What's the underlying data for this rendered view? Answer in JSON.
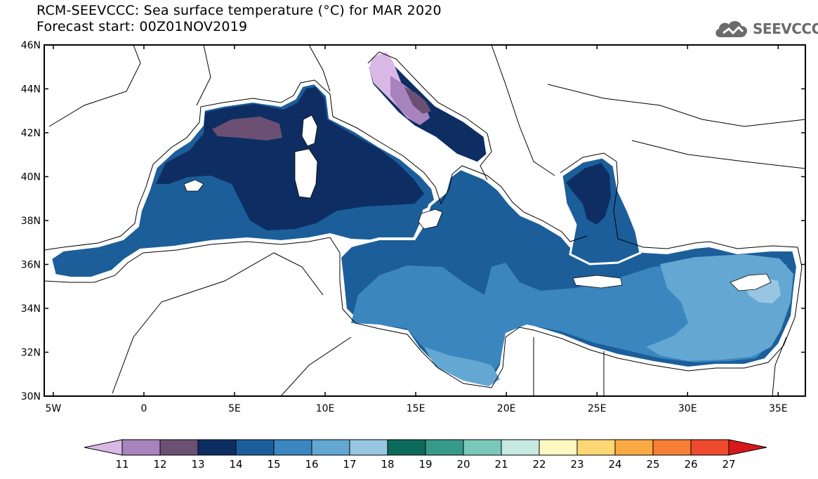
{
  "title": {
    "line1": "RCM-SEEVCCC: Sea surface temperature (°C) for MAR 2020",
    "line2": "Forecast start: 00Z01NOV2019"
  },
  "logo": {
    "text": "SEEVCCC",
    "icon": "cloud-icon"
  },
  "map": {
    "lon_range": [
      -5.5,
      36.5
    ],
    "lat_range": [
      30,
      46
    ],
    "lat_ticks": [
      "30N",
      "32N",
      "34N",
      "36N",
      "38N",
      "40N",
      "42N",
      "44N",
      "46N"
    ],
    "lon_ticks": [
      "5W",
      "0",
      "5E",
      "10E",
      "15E",
      "20E",
      "25E",
      "30E",
      "35E"
    ]
  },
  "colorbar": {
    "labels": [
      "11",
      "12",
      "13",
      "14",
      "15",
      "16",
      "17",
      "18",
      "19",
      "20",
      "21",
      "22",
      "23",
      "24",
      "25",
      "26",
      "27"
    ],
    "colors": [
      "#d9b8e6",
      "#a883bd",
      "#6b5073",
      "#0e2e63",
      "#1c5e9a",
      "#3b86bf",
      "#64a7d3",
      "#98c6e2",
      "#0b6b5a",
      "#359a8a",
      "#79c8ba",
      "#c6e9e1",
      "#fff7c2",
      "#fcd774",
      "#f9aa43",
      "#f77f35",
      "#ee4a2d",
      "#d7191c"
    ]
  }
}
